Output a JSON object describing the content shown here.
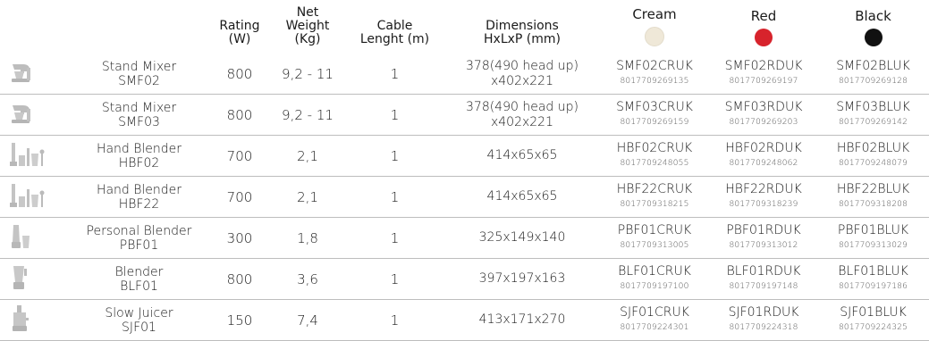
{
  "headers": {
    "rating": "Rating\n(W)",
    "weight": "Net\nWeight\n(Kg)",
    "cable": "Cable\nLenght (m)",
    "dimensions": "Dimensions\nHxLxP (mm)",
    "colors": [
      {
        "label": "Cream",
        "hex": "#efe8d8"
      },
      {
        "label": "Red",
        "hex": "#d7232c"
      },
      {
        "label": "Black",
        "hex": "#111111"
      }
    ]
  },
  "rows": [
    {
      "icon": "stand-mixer-icon",
      "name": "Stand Mixer",
      "model": "SMF02",
      "rating": "800",
      "weight": "9,2 - 11",
      "cable": "1",
      "dimensions": "378(490 head up)\nx402x221",
      "codes": [
        {
          "code": "SMF02CRUK",
          "ean": "8017709269135"
        },
        {
          "code": "SMF02RDUK",
          "ean": "8017709269197"
        },
        {
          "code": "SMF02BLUK",
          "ean": "8017709269128"
        }
      ]
    },
    {
      "icon": "stand-mixer-icon",
      "name": "Stand Mixer",
      "model": "SMF03",
      "rating": "800",
      "weight": "9,2 - 11",
      "cable": "1",
      "dimensions": "378(490 head up)\nx402x221",
      "codes": [
        {
          "code": "SMF03CRUK",
          "ean": "8017709269159"
        },
        {
          "code": "SMF03RDUK",
          "ean": "8017709269203"
        },
        {
          "code": "SMF03BLUK",
          "ean": "8017709269142"
        }
      ]
    },
    {
      "icon": "hand-blender-icon",
      "name": "Hand Blender",
      "model": "HBF02",
      "rating": "700",
      "weight": "2,1",
      "cable": "1",
      "dimensions": "414x65x65",
      "codes": [
        {
          "code": "HBF02CRUK",
          "ean": "8017709248055"
        },
        {
          "code": "HBF02RDUK",
          "ean": "8017709248062"
        },
        {
          "code": "HBF02BLUK",
          "ean": "8017709248079"
        }
      ]
    },
    {
      "icon": "hand-blender-icon",
      "name": "Hand Blender",
      "model": "HBF22",
      "rating": "700",
      "weight": "2,1",
      "cable": "1",
      "dimensions": "414x65x65",
      "codes": [
        {
          "code": "HBF22CRUK",
          "ean": "8017709318215"
        },
        {
          "code": "HBF22RDUK",
          "ean": "8017709318239"
        },
        {
          "code": "HBF22BLUK",
          "ean": "8017709318208"
        }
      ]
    },
    {
      "icon": "personal-blender-icon",
      "name": "Personal Blender",
      "model": "PBF01",
      "rating": "300",
      "weight": "1,8",
      "cable": "1",
      "dimensions": "325x149x140",
      "codes": [
        {
          "code": "PBF01CRUK",
          "ean": "8017709313005"
        },
        {
          "code": "PBF01RDUK",
          "ean": "8017709313012"
        },
        {
          "code": "PBF01BLUK",
          "ean": "8017709313029"
        }
      ]
    },
    {
      "icon": "blender-icon",
      "name": "Blender",
      "model": "BLF01",
      "rating": "800",
      "weight": "3,6",
      "cable": "1",
      "dimensions": "397x197x163",
      "codes": [
        {
          "code": "BLF01CRUK",
          "ean": "8017709197100"
        },
        {
          "code": "BLF01RDUK",
          "ean": "8017709197148"
        },
        {
          "code": "BLF01BLUK",
          "ean": "8017709197186"
        }
      ]
    },
    {
      "icon": "slow-juicer-icon",
      "name": "Slow Juicer",
      "model": "SJF01",
      "rating": "150",
      "weight": "7,4",
      "cable": "1",
      "dimensions": "413x171x270",
      "codes": [
        {
          "code": "SJF01CRUK",
          "ean": "8017709224301"
        },
        {
          "code": "SJF01RDUK",
          "ean": "8017709224318"
        },
        {
          "code": "SJF01BLUK",
          "ean": "8017709224325"
        }
      ]
    }
  ]
}
